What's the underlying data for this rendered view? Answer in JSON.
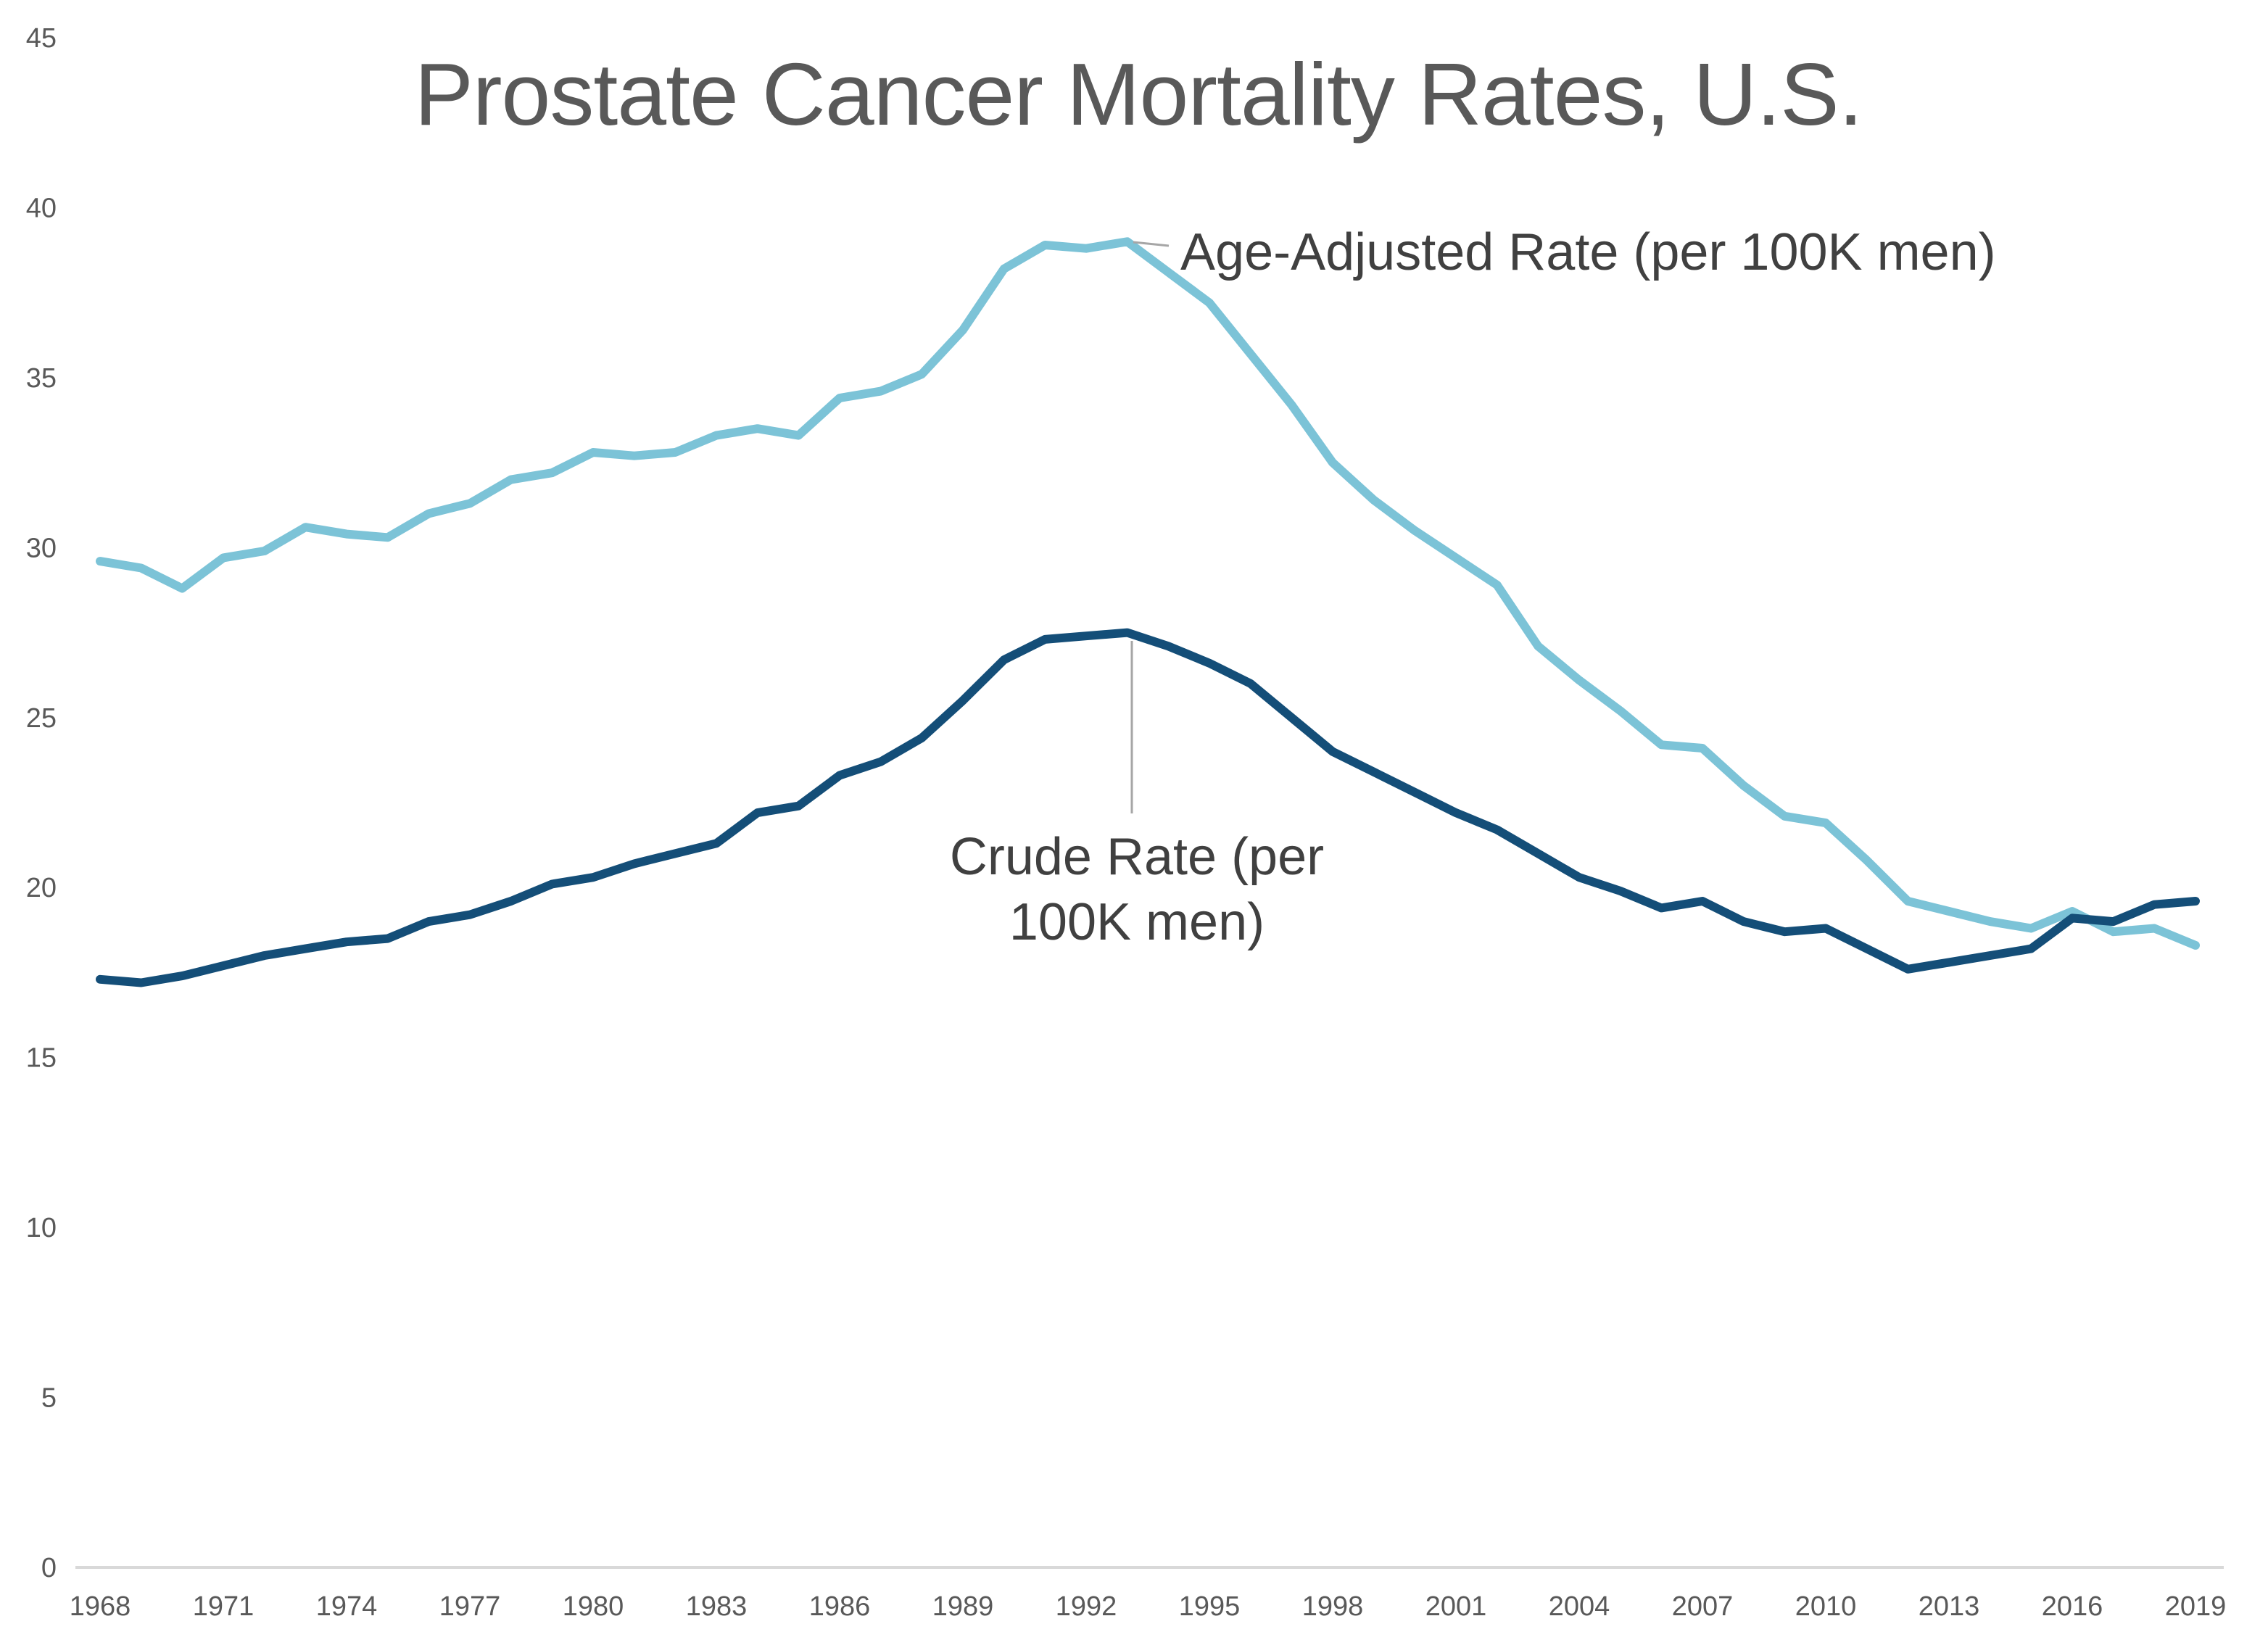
{
  "title": "Prostate Cancer Mortality Rates, U.S.",
  "colors": {
    "title_text": "#595959",
    "tick_label": "#595959",
    "axis_line": "#D9D9D9",
    "annotation_text": "#404040",
    "leader_line": "#A6A6A6",
    "age_adjusted_series": "#7CC3D7",
    "crude_series": "#144E78"
  },
  "chart_data": {
    "type": "line",
    "title": "Prostate Cancer Mortality Rates, U.S.",
    "xlabel": "",
    "ylabel": "",
    "ylim": [
      0,
      45
    ],
    "y_ticks": [
      0,
      5,
      10,
      15,
      20,
      25,
      30,
      35,
      40,
      45
    ],
    "x_tick_years": [
      1968,
      1971,
      1974,
      1977,
      1980,
      1983,
      1986,
      1989,
      1992,
      1995,
      1998,
      2001,
      2004,
      2007,
      2010,
      2013,
      2016,
      2019
    ],
    "grid": "off",
    "legend_position": "none-inline-annotations",
    "x": [
      1968,
      1969,
      1970,
      1971,
      1972,
      1973,
      1974,
      1975,
      1976,
      1977,
      1978,
      1979,
      1980,
      1981,
      1982,
      1983,
      1984,
      1985,
      1986,
      1987,
      1988,
      1989,
      1990,
      1991,
      1992,
      1993,
      1994,
      1995,
      1996,
      1997,
      1998,
      1999,
      2000,
      2001,
      2002,
      2003,
      2004,
      2005,
      2006,
      2007,
      2008,
      2009,
      2010,
      2011,
      2012,
      2013,
      2014,
      2015,
      2016,
      2017,
      2018,
      2019
    ],
    "series": [
      {
        "name": "Age-Adjusted Rate (per 100K men)",
        "color": "#7CC3D7",
        "values": [
          29.6,
          29.4,
          28.8,
          29.7,
          29.9,
          30.6,
          30.4,
          30.3,
          31.0,
          31.3,
          32.0,
          32.2,
          32.8,
          32.7,
          32.8,
          33.3,
          33.5,
          33.3,
          34.4,
          34.6,
          35.1,
          36.4,
          38.2,
          38.9,
          38.8,
          39.0,
          38.1,
          37.2,
          35.7,
          34.2,
          32.5,
          31.4,
          30.5,
          29.7,
          28.9,
          27.1,
          26.1,
          25.2,
          24.2,
          24.1,
          23.0,
          22.1,
          21.9,
          20.8,
          19.6,
          19.3,
          19.0,
          18.8,
          19.3,
          18.7,
          18.8,
          18.3
        ]
      },
      {
        "name": "Crude Rate (per 100K men)",
        "color": "#144E78",
        "values": [
          17.3,
          17.2,
          17.4,
          17.7,
          18.0,
          18.2,
          18.4,
          18.5,
          19.0,
          19.2,
          19.6,
          20.1,
          20.3,
          20.7,
          21.0,
          21.3,
          22.2,
          22.4,
          23.3,
          23.7,
          24.4,
          25.5,
          26.7,
          27.3,
          27.4,
          27.5,
          27.1,
          26.6,
          26.0,
          25.0,
          24.0,
          23.4,
          22.8,
          22.2,
          21.7,
          21.0,
          20.3,
          19.9,
          19.4,
          19.6,
          19.0,
          18.7,
          18.8,
          18.2,
          17.6,
          17.8,
          18.0,
          18.2,
          19.1,
          19.0,
          19.5,
          19.6
        ]
      }
    ],
    "annotations": [
      {
        "label": "Age-Adjusted Rate (per 100K men)",
        "anchor_year": 1993,
        "anchor_value": 39.0
      },
      {
        "label": "Crude Rate (per 100K men)",
        "anchor_year": 1993,
        "anchor_value": 27.5,
        "wrapped_lines": [
          "Crude Rate (per",
          "100K men)"
        ]
      }
    ]
  }
}
